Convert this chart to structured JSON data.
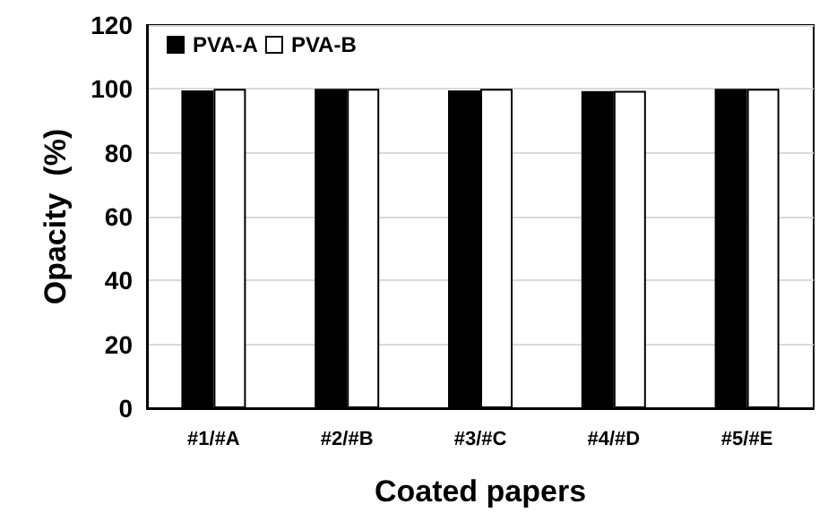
{
  "chart_data": {
    "type": "bar",
    "xlabel": "Coated papers",
    "ylabel": "Opacity  (%)",
    "categories": [
      "#1/#A",
      "#2/#B",
      "#3/#C",
      "#4/#D",
      "#5/#E"
    ],
    "series": [
      {
        "name": "PVA-A",
        "color": "#000000",
        "values": [
          99.5,
          100,
          99.5,
          99.3,
          100
        ]
      },
      {
        "name": "PVA-B",
        "color": "#ffffff",
        "values": [
          100,
          100,
          100,
          99.4,
          100
        ]
      }
    ],
    "ylim": [
      0,
      120
    ],
    "yticks": [
      0,
      20,
      40,
      60,
      80,
      100,
      120
    ],
    "grid": "y",
    "legend": "top left"
  }
}
